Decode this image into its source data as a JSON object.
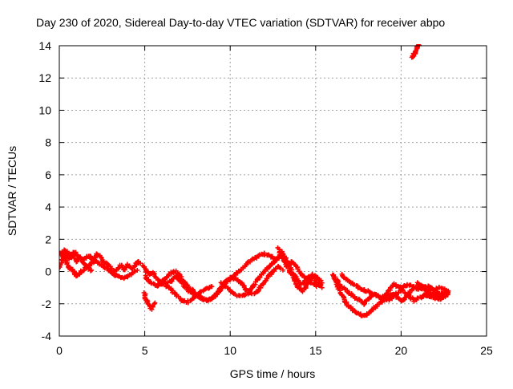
{
  "chart_data": {
    "type": "scatter",
    "title": "Day 230 of 2020, Sidereal Day-to-day VTEC variation (SDTVAR) for receiver abpo",
    "xlabel": "GPS time / hours",
    "ylabel": "SDTVAR / TECUs",
    "xlim": [
      0,
      25
    ],
    "ylim": [
      -4,
      14
    ],
    "xticks": [
      0,
      5,
      10,
      15,
      20,
      25
    ],
    "yticks": [
      -4,
      -2,
      0,
      2,
      4,
      6,
      8,
      10,
      12,
      14
    ],
    "grid": true,
    "marker": "+",
    "series": [
      {
        "name": "SDTVAR",
        "color": "#ff0000",
        "tracks": [
          [
            [
              0.0,
              1.1
            ],
            [
              0.15,
              1.2
            ],
            [
              0.3,
              0.8
            ],
            [
              0.4,
              1.1
            ],
            [
              0.6,
              0.8
            ],
            [
              0.8,
              1.1
            ],
            [
              1.0,
              0.6
            ],
            [
              1.2,
              0.9
            ],
            [
              1.4,
              0.7
            ],
            [
              1.6,
              0.9
            ],
            [
              1.8,
              1.0
            ],
            [
              2.0,
              0.6
            ],
            [
              2.2,
              1.1
            ],
            [
              2.4,
              0.9
            ],
            [
              2.6,
              0.6
            ],
            [
              2.8,
              0.5
            ],
            [
              3.0,
              0.3
            ],
            [
              3.2,
              0.0
            ],
            [
              3.4,
              0.2
            ],
            [
              3.6,
              0.4
            ],
            [
              3.8,
              0.1
            ],
            [
              4.0,
              0.4
            ],
            [
              4.3,
              0.2
            ],
            [
              4.6,
              0.6
            ],
            [
              4.8,
              0.5
            ]
          ],
          [
            [
              0.2,
              1.0
            ],
            [
              0.4,
              0.6
            ],
            [
              0.6,
              0.2
            ],
            [
              0.8,
              0.1
            ],
            [
              1.0,
              -0.3
            ],
            [
              1.2,
              -0.1
            ],
            [
              1.4,
              0.1
            ],
            [
              1.6,
              0.3
            ],
            [
              1.8,
              0.4
            ],
            [
              2.0,
              0.7
            ],
            [
              2.3,
              0.5
            ],
            [
              2.6,
              0.3
            ],
            [
              2.9,
              0.1
            ],
            [
              3.2,
              -0.2
            ],
            [
              3.5,
              -0.3
            ],
            [
              3.8,
              -0.4
            ],
            [
              4.0,
              -0.3
            ],
            [
              4.3,
              -0.1
            ],
            [
              4.6,
              0.1
            ]
          ],
          [
            [
              0.0,
              0.2
            ],
            [
              0.1,
              0.5
            ],
            [
              0.3,
              1.3
            ],
            [
              0.5,
              1.2
            ],
            [
              0.7,
              0.9
            ],
            [
              0.9,
              1.2
            ],
            [
              1.1,
              1.0
            ],
            [
              1.3,
              0.7
            ],
            [
              1.5,
              0.4
            ],
            [
              1.7,
              0.2
            ],
            [
              1.9,
              0.0
            ]
          ],
          [
            [
              4.9,
              0.4
            ],
            [
              5.1,
              0.0
            ],
            [
              5.3,
              -0.2
            ],
            [
              5.5,
              -0.1
            ],
            [
              5.7,
              -0.4
            ],
            [
              5.9,
              -0.7
            ],
            [
              6.1,
              -0.5
            ],
            [
              6.3,
              -0.3
            ],
            [
              6.5,
              -0.1
            ],
            [
              6.8,
              0.0
            ],
            [
              7.0,
              -0.2
            ],
            [
              7.2,
              -0.5
            ],
            [
              7.5,
              -0.9
            ],
            [
              7.8,
              -1.2
            ],
            [
              8.1,
              -1.5
            ],
            [
              8.4,
              -1.7
            ],
            [
              8.7,
              -1.8
            ],
            [
              9.0,
              -1.6
            ],
            [
              9.3,
              -1.2
            ],
            [
              9.6,
              -0.8
            ],
            [
              9.9,
              -0.5
            ],
            [
              10.2,
              -0.3
            ],
            [
              10.5,
              0.0
            ],
            [
              10.8,
              0.3
            ],
            [
              11.1,
              0.6
            ],
            [
              11.4,
              0.8
            ],
            [
              11.7,
              1.0
            ],
            [
              12.0,
              1.1
            ],
            [
              12.3,
              1.0
            ],
            [
              12.6,
              0.8
            ],
            [
              12.9,
              0.9
            ]
          ],
          [
            [
              5.0,
              -0.3
            ],
            [
              5.3,
              -0.6
            ],
            [
              5.6,
              -0.9
            ],
            [
              5.9,
              -0.8
            ],
            [
              6.2,
              -0.7
            ],
            [
              6.5,
              -0.6
            ],
            [
              6.8,
              -0.3
            ],
            [
              7.1,
              -0.6
            ],
            [
              7.4,
              -1.0
            ],
            [
              7.7,
              -1.3
            ],
            [
              8.0,
              -1.5
            ],
            [
              8.3,
              -1.6
            ],
            [
              8.6,
              -1.8
            ],
            [
              8.9,
              -1.7
            ],
            [
              9.2,
              -1.5
            ],
            [
              9.5,
              -1.0
            ],
            [
              9.8,
              -0.6
            ],
            [
              10.1,
              -0.4
            ],
            [
              10.4,
              -0.5
            ],
            [
              10.7,
              -0.8
            ],
            [
              11.0,
              -1.2
            ],
            [
              11.3,
              -1.4
            ],
            [
              11.6,
              -1.2
            ],
            [
              11.9,
              -0.8
            ],
            [
              12.2,
              -0.4
            ],
            [
              12.5,
              0.0
            ],
            [
              12.8,
              0.3
            ],
            [
              13.1,
              0.1
            ]
          ],
          [
            [
              6.0,
              -0.5
            ],
            [
              6.3,
              -0.9
            ],
            [
              6.6,
              -1.2
            ],
            [
              6.9,
              -1.5
            ],
            [
              7.2,
              -1.8
            ],
            [
              7.5,
              -1.9
            ],
            [
              7.8,
              -1.7
            ],
            [
              8.1,
              -1.4
            ],
            [
              8.4,
              -1.2
            ],
            [
              8.7,
              -1.0
            ],
            [
              9.0,
              -0.9
            ]
          ],
          [
            [
              9.5,
              -0.7
            ],
            [
              9.8,
              -1.0
            ],
            [
              10.1,
              -1.3
            ],
            [
              10.4,
              -1.5
            ],
            [
              10.7,
              -1.5
            ],
            [
              11.0,
              -1.4
            ],
            [
              11.3,
              -1.0
            ],
            [
              11.6,
              -0.5
            ],
            [
              11.9,
              -0.1
            ],
            [
              12.2,
              0.2
            ],
            [
              12.5,
              0.5
            ],
            [
              12.8,
              0.8
            ],
            [
              13.0,
              1.2
            ],
            [
              13.2,
              0.9
            ],
            [
              13.4,
              0.5
            ],
            [
              13.6,
              0.0
            ],
            [
              13.8,
              -0.3
            ],
            [
              14.0,
              -0.6
            ],
            [
              14.2,
              -0.8
            ],
            [
              14.4,
              -0.6
            ],
            [
              14.6,
              -0.3
            ],
            [
              14.8,
              -0.4
            ],
            [
              15.0,
              -0.6
            ],
            [
              15.2,
              -0.8
            ],
            [
              15.4,
              -1.0
            ]
          ],
          [
            [
              12.8,
              1.5
            ],
            [
              13.0,
              1.0
            ],
            [
              13.2,
              0.6
            ],
            [
              13.4,
              0.2
            ],
            [
              13.6,
              -0.2
            ],
            [
              13.8,
              -0.6
            ],
            [
              14.0,
              -1.0
            ],
            [
              14.2,
              -1.2
            ],
            [
              14.4,
              -1.0
            ],
            [
              14.6,
              -0.6
            ],
            [
              14.8,
              -0.2
            ],
            [
              15.0,
              -0.3
            ],
            [
              15.2,
              -0.5
            ],
            [
              15.4,
              -0.7
            ]
          ],
          [
            [
              13.3,
              0.3
            ],
            [
              13.6,
              0.6
            ],
            [
              13.9,
              0.3
            ],
            [
              14.2,
              -0.2
            ],
            [
              14.5,
              -0.5
            ],
            [
              14.8,
              -0.7
            ],
            [
              15.1,
              -0.9
            ],
            [
              15.4,
              -0.8
            ]
          ],
          [
            [
              16.0,
              -0.2
            ],
            [
              16.2,
              -0.5
            ],
            [
              16.4,
              -0.8
            ],
            [
              16.6,
              -1.0
            ],
            [
              16.8,
              -1.2
            ],
            [
              17.0,
              -1.4
            ],
            [
              17.2,
              -1.5
            ],
            [
              17.4,
              -1.7
            ],
            [
              17.6,
              -1.8
            ],
            [
              17.8,
              -2.0
            ],
            [
              18.0,
              -1.8
            ],
            [
              18.2,
              -1.6
            ],
            [
              18.4,
              -1.4
            ],
            [
              18.6,
              -1.5
            ],
            [
              18.8,
              -1.6
            ],
            [
              19.0,
              -1.5
            ],
            [
              19.2,
              -1.3
            ],
            [
              19.4,
              -1.0
            ],
            [
              19.6,
              -0.8
            ],
            [
              19.8,
              -0.9
            ],
            [
              20.0,
              -1.0
            ],
            [
              20.2,
              -1.3
            ],
            [
              20.5,
              -1.6
            ],
            [
              20.8,
              -1.8
            ],
            [
              21.1,
              -1.6
            ],
            [
              21.4,
              -1.5
            ],
            [
              21.7,
              -1.4
            ],
            [
              22.0,
              -1.4
            ],
            [
              22.3,
              -1.5
            ],
            [
              22.6,
              -1.3
            ]
          ],
          [
            [
              16.1,
              -0.4
            ],
            [
              16.3,
              -0.9
            ],
            [
              16.5,
              -1.4
            ],
            [
              16.7,
              -1.8
            ],
            [
              16.9,
              -2.1
            ],
            [
              17.1,
              -2.3
            ],
            [
              17.3,
              -2.5
            ],
            [
              17.5,
              -2.6
            ],
            [
              17.7,
              -2.7
            ],
            [
              17.9,
              -2.7
            ],
            [
              18.1,
              -2.6
            ],
            [
              18.3,
              -2.4
            ],
            [
              18.5,
              -2.2
            ],
            [
              18.7,
              -2.0
            ],
            [
              18.9,
              -1.8
            ],
            [
              19.1,
              -1.6
            ],
            [
              19.3,
              -1.5
            ],
            [
              19.5,
              -1.4
            ],
            [
              19.7,
              -1.5
            ],
            [
              19.9,
              -1.7
            ],
            [
              20.1,
              -1.8
            ],
            [
              20.3,
              -1.6
            ],
            [
              20.5,
              -1.3
            ],
            [
              20.7,
              -1.0
            ],
            [
              21.0,
              -0.9
            ],
            [
              21.3,
              -1.1
            ],
            [
              21.6,
              -1.3
            ],
            [
              21.9,
              -1.5
            ],
            [
              22.2,
              -1.7
            ],
            [
              22.5,
              -1.6
            ]
          ],
          [
            [
              16.5,
              -0.2
            ],
            [
              16.8,
              -0.5
            ],
            [
              17.1,
              -0.7
            ],
            [
              17.4,
              -0.9
            ],
            [
              17.7,
              -1.1
            ],
            [
              18.0,
              -1.2
            ],
            [
              18.3,
              -1.3
            ],
            [
              18.6,
              -1.5
            ],
            [
              18.9,
              -1.7
            ],
            [
              19.2,
              -1.8
            ],
            [
              19.5,
              -1.6
            ],
            [
              19.8,
              -1.3
            ],
            [
              20.1,
              -1.0
            ],
            [
              20.4,
              -0.8
            ],
            [
              20.7,
              -0.9
            ],
            [
              21.0,
              -1.1
            ],
            [
              21.3,
              -1.0
            ],
            [
              21.6,
              -0.9
            ],
            [
              21.9,
              -1.1
            ],
            [
              22.2,
              -1.3
            ],
            [
              22.5,
              -1.4
            ],
            [
              22.8,
              -1.2
            ]
          ],
          [
            [
              21.0,
              -0.7
            ],
            [
              21.3,
              -0.9
            ],
            [
              21.6,
              -1.1
            ],
            [
              21.9,
              -1.2
            ],
            [
              22.2,
              -1.0
            ],
            [
              22.5,
              -1.1
            ],
            [
              22.8,
              -1.3
            ],
            [
              22.5,
              -1.6
            ],
            [
              22.2,
              -1.7
            ],
            [
              21.9,
              -1.6
            ],
            [
              21.6,
              -1.5
            ],
            [
              21.3,
              -1.4
            ]
          ],
          [
            [
              5.0,
              -1.3
            ],
            [
              5.0,
              -1.6
            ],
            [
              5.2,
              -2.0
            ],
            [
              5.4,
              -2.3
            ],
            [
              5.6,
              -1.9
            ]
          ],
          [
            [
              20.6,
              13.3
            ],
            [
              20.7,
              13.4
            ],
            [
              20.8,
              13.6
            ],
            [
              20.9,
              13.8
            ],
            [
              21.0,
              14.0
            ],
            [
              21.1,
              14.1
            ]
          ]
        ]
      }
    ]
  }
}
